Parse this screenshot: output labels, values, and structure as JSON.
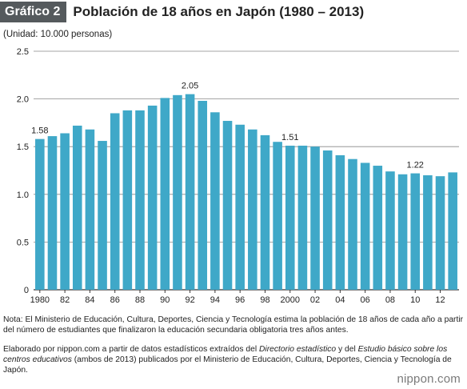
{
  "header": {
    "badge": "Gráfico 2",
    "title": "Población de 18 años en Japón (1980 – 2013)"
  },
  "unit_label": "(Unidad: 10.000 personas)",
  "chart_data": {
    "type": "bar",
    "title": "Población de 18 años en Japón (1980 – 2013)",
    "ylabel": "(Unidad: 10.000 personas)",
    "xlabel": "",
    "ylim": [
      0,
      2.5
    ],
    "yticks": [
      "0",
      "0.5",
      "1.0",
      "1.5",
      "2.0",
      "2.5"
    ],
    "grid": true,
    "color": "#3fa8c8",
    "categories": [
      "1980",
      "1981",
      "1982",
      "1983",
      "1984",
      "1985",
      "1986",
      "1987",
      "1988",
      "1989",
      "1990",
      "1991",
      "1992",
      "1993",
      "1994",
      "1995",
      "1996",
      "1997",
      "1998",
      "1999",
      "2000",
      "2001",
      "2002",
      "2003",
      "2004",
      "2005",
      "2006",
      "2007",
      "2008",
      "2009",
      "2010",
      "2011",
      "2012",
      "2013"
    ],
    "xtick_labels": [
      "1980",
      "",
      "82",
      "",
      "84",
      "",
      "86",
      "",
      "88",
      "",
      "90",
      "",
      "92",
      "",
      "94",
      "",
      "96",
      "",
      "98",
      "",
      "2000",
      "",
      "02",
      "",
      "04",
      "",
      "06",
      "",
      "08",
      "",
      "10",
      "",
      "12",
      ""
    ],
    "values": [
      1.58,
      1.61,
      1.64,
      1.72,
      1.68,
      1.56,
      1.85,
      1.88,
      1.88,
      1.93,
      2.01,
      2.04,
      2.05,
      1.98,
      1.86,
      1.77,
      1.73,
      1.68,
      1.62,
      1.55,
      1.51,
      1.51,
      1.5,
      1.46,
      1.41,
      1.37,
      1.33,
      1.3,
      1.24,
      1.21,
      1.22,
      1.2,
      1.19,
      1.23
    ],
    "data_labels": [
      {
        "index": 0,
        "text": "1.58"
      },
      {
        "index": 12,
        "text": "2.05"
      },
      {
        "index": 20,
        "text": "1.51"
      },
      {
        "index": 30,
        "text": "1.22"
      }
    ]
  },
  "notes": {
    "note": "Nota: El Ministerio de Educación, Cultura, Deportes, Ciencia y Tecnología estima la población de 18 años de cada año a partir del número de estudiantes que finalizaron la educación secundaria obligatoria tres años antes.",
    "source_prefix": "Elaborado por nippon.com a partir de datos estadísticos extraídos del ",
    "source_title1": "Directorio estadístico",
    "source_mid": " y del ",
    "source_title2": "Estudio básico sobre los centros educativos",
    "source_suffix": " (ambos de 2013) publicados por el Ministerio de Educación, Cultura, Deportes, Ciencia y Tecnología de Japón."
  },
  "brand": "nippon.com"
}
